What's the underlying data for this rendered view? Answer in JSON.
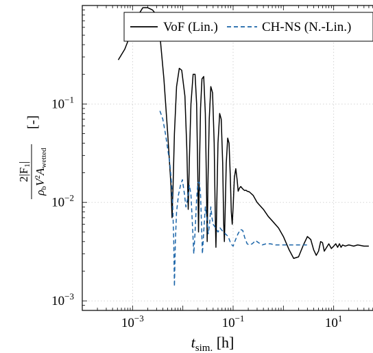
{
  "chart_data": {
    "type": "line",
    "title": "",
    "xlabel": {
      "base": "t",
      "sub": "sim.",
      "unit": "[h]"
    },
    "ylabel": {
      "numerator": "2|F",
      "numerator_sub": "1",
      "numerator_end": "|",
      "den_rho": "ρ",
      "den_rho_sub": "b",
      "den_v": "V",
      "den_v_sup": "2",
      "den_a": "A",
      "den_a_sub": "wetted",
      "unit": "[-]"
    },
    "x_scale": "log",
    "y_scale": "log",
    "xlim": [
      0.0001,
      100
    ],
    "ylim": [
      0.0008,
      1.0
    ],
    "grid": true,
    "legend_position": "top",
    "x_ticks": [
      {
        "value": 0.001,
        "base": "10",
        "exp": "−3"
      },
      {
        "value": 0.1,
        "base": "10",
        "exp": "−1"
      },
      {
        "value": 10,
        "base": "10",
        "exp": "1"
      }
    ],
    "y_ticks": [
      {
        "value": 0.1,
        "base": "10",
        "exp": "−1"
      },
      {
        "value": 0.01,
        "base": "10",
        "exp": "−2"
      },
      {
        "value": 0.001,
        "base": "10",
        "exp": "−3"
      }
    ],
    "series": [
      {
        "name": "VoF (Lin.)",
        "color": "#000000",
        "dash": "solid",
        "points": [
          [
            0.00052,
            0.28
          ],
          [
            0.0007,
            0.36
          ],
          [
            0.0009,
            0.5
          ],
          [
            0.0012,
            0.75
          ],
          [
            0.0016,
            0.95
          ],
          [
            0.002,
            0.95
          ],
          [
            0.0025,
            0.9
          ],
          [
            0.003,
            0.8
          ],
          [
            0.0035,
            0.5
          ],
          [
            0.0042,
            0.18
          ],
          [
            0.005,
            0.05
          ],
          [
            0.0058,
            0.015
          ],
          [
            0.0061,
            0.007
          ],
          [
            0.0064,
            0.015
          ],
          [
            0.0068,
            0.05
          ],
          [
            0.0075,
            0.15
          ],
          [
            0.0085,
            0.23
          ],
          [
            0.0095,
            0.22
          ],
          [
            0.011,
            0.12
          ],
          [
            0.012,
            0.035
          ],
          [
            0.0128,
            0.0085
          ],
          [
            0.0135,
            0.028
          ],
          [
            0.0145,
            0.1
          ],
          [
            0.016,
            0.2
          ],
          [
            0.0175,
            0.2
          ],
          [
            0.0188,
            0.1
          ],
          [
            0.0198,
            0.02
          ],
          [
            0.0205,
            0.005
          ],
          [
            0.0213,
            0.02
          ],
          [
            0.0225,
            0.09
          ],
          [
            0.024,
            0.18
          ],
          [
            0.026,
            0.19
          ],
          [
            0.028,
            0.08
          ],
          [
            0.0295,
            0.015
          ],
          [
            0.0305,
            0.004
          ],
          [
            0.0315,
            0.015
          ],
          [
            0.0335,
            0.07
          ],
          [
            0.036,
            0.15
          ],
          [
            0.039,
            0.13
          ],
          [
            0.042,
            0.04
          ],
          [
            0.044,
            0.008
          ],
          [
            0.0455,
            0.0035
          ],
          [
            0.047,
            0.008
          ],
          [
            0.05,
            0.04
          ],
          [
            0.054,
            0.08
          ],
          [
            0.058,
            0.07
          ],
          [
            0.062,
            0.025
          ],
          [
            0.065,
            0.006
          ],
          [
            0.067,
            0.004
          ],
          [
            0.069,
            0.007
          ],
          [
            0.073,
            0.025
          ],
          [
            0.078,
            0.045
          ],
          [
            0.083,
            0.04
          ],
          [
            0.088,
            0.018
          ],
          [
            0.092,
            0.008
          ],
          [
            0.096,
            0.006
          ],
          [
            0.1,
            0.009
          ],
          [
            0.106,
            0.018
          ],
          [
            0.113,
            0.022
          ],
          [
            0.12,
            0.017
          ],
          [
            0.126,
            0.013
          ],
          [
            0.134,
            0.014
          ],
          [
            0.142,
            0.0145
          ],
          [
            0.15,
            0.014
          ],
          [
            0.16,
            0.0135
          ],
          [
            0.17,
            0.0132
          ],
          [
            0.18,
            0.0133
          ],
          [
            0.19,
            0.013
          ],
          [
            0.21,
            0.0128
          ],
          [
            0.25,
            0.0118
          ],
          [
            0.3,
            0.01
          ],
          [
            0.4,
            0.0085
          ],
          [
            0.5,
            0.0072
          ],
          [
            0.6,
            0.0065
          ],
          [
            0.8,
            0.0055
          ],
          [
            1.0,
            0.0045
          ],
          [
            1.3,
            0.0033
          ],
          [
            1.6,
            0.0027
          ],
          [
            2.0,
            0.0028
          ],
          [
            2.5,
            0.0037
          ],
          [
            3.0,
            0.0045
          ],
          [
            3.5,
            0.0042
          ],
          [
            4.0,
            0.0033
          ],
          [
            4.5,
            0.0029
          ],
          [
            5.0,
            0.0032
          ],
          [
            5.5,
            0.004
          ],
          [
            6.0,
            0.0039
          ],
          [
            6.5,
            0.0032
          ],
          [
            7.0,
            0.0034
          ],
          [
            8.0,
            0.0038
          ],
          [
            9.0,
            0.0034
          ],
          [
            10.0,
            0.0036
          ],
          [
            11,
            0.0038
          ],
          [
            12,
            0.0035
          ],
          [
            13,
            0.0038
          ],
          [
            14,
            0.0035
          ],
          [
            15,
            0.0037
          ],
          [
            17,
            0.0036
          ],
          [
            20,
            0.0037
          ],
          [
            25,
            0.0036
          ],
          [
            30,
            0.0037
          ],
          [
            40,
            0.0036
          ],
          [
            50,
            0.0036
          ]
        ]
      },
      {
        "name": "CH-NS (N.-Lin.)",
        "color": "#1a64a8",
        "dash": "dashed",
        "points": [
          [
            0.0035,
            0.085
          ],
          [
            0.004,
            0.07
          ],
          [
            0.0045,
            0.05
          ],
          [
            0.005,
            0.035
          ],
          [
            0.0055,
            0.025
          ],
          [
            0.006,
            0.015
          ],
          [
            0.0063,
            0.009
          ],
          [
            0.0066,
            0.004
          ],
          [
            0.0068,
            0.0014
          ],
          [
            0.0071,
            0.004
          ],
          [
            0.0075,
            0.008
          ],
          [
            0.0082,
            0.012
          ],
          [
            0.009,
            0.015
          ],
          [
            0.0098,
            0.017
          ],
          [
            0.0108,
            0.012
          ],
          [
            0.0115,
            0.009
          ],
          [
            0.0125,
            0.011
          ],
          [
            0.0135,
            0.015
          ],
          [
            0.0145,
            0.012
          ],
          [
            0.0155,
            0.006
          ],
          [
            0.0165,
            0.003
          ],
          [
            0.0175,
            0.005
          ],
          [
            0.0188,
            0.011
          ],
          [
            0.02,
            0.016
          ],
          [
            0.0213,
            0.016
          ],
          [
            0.0225,
            0.012
          ],
          [
            0.0235,
            0.006
          ],
          [
            0.0245,
            0.003
          ],
          [
            0.026,
            0.005
          ],
          [
            0.028,
            0.009
          ],
          [
            0.03,
            0.007
          ],
          [
            0.032,
            0.0048
          ],
          [
            0.034,
            0.006
          ],
          [
            0.036,
            0.009
          ],
          [
            0.038,
            0.007
          ],
          [
            0.04,
            0.006
          ],
          [
            0.045,
            0.0055
          ],
          [
            0.05,
            0.005
          ],
          [
            0.055,
            0.0055
          ],
          [
            0.06,
            0.0052
          ],
          [
            0.07,
            0.0048
          ],
          [
            0.08,
            0.0045
          ],
          [
            0.09,
            0.0038
          ],
          [
            0.1,
            0.0036
          ],
          [
            0.11,
            0.0041
          ],
          [
            0.125,
            0.0048
          ],
          [
            0.14,
            0.0053
          ],
          [
            0.155,
            0.0052
          ],
          [
            0.17,
            0.0044
          ],
          [
            0.19,
            0.0038
          ],
          [
            0.21,
            0.0037
          ],
          [
            0.24,
            0.0038
          ],
          [
            0.28,
            0.0041
          ],
          [
            0.32,
            0.0039
          ],
          [
            0.38,
            0.0037
          ],
          [
            0.45,
            0.0038
          ],
          [
            0.55,
            0.0038
          ],
          [
            0.7,
            0.0037
          ],
          [
            1.0,
            0.0037
          ],
          [
            1.5,
            0.0037
          ],
          [
            2.0,
            0.0037
          ],
          [
            3.0,
            0.0037
          ]
        ]
      }
    ]
  }
}
